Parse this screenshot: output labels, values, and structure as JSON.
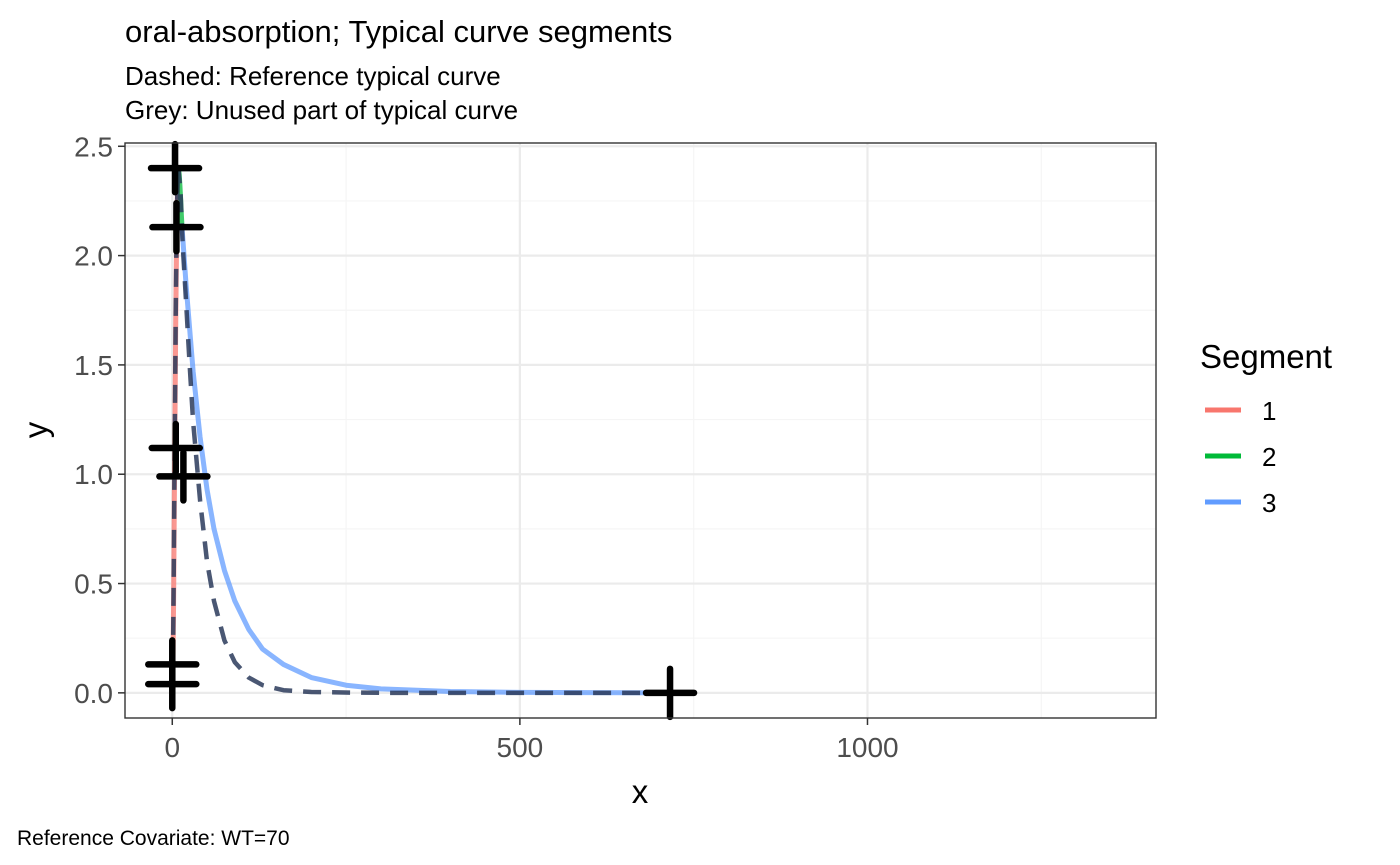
{
  "chart_data": {
    "type": "line",
    "title": "oral-absorption; Typical curve segments",
    "subtitle_lines": [
      "Dashed: Reference typical curve",
      "Grey: Unused part of typical curve"
    ],
    "xlabel": "x",
    "ylabel": "y",
    "xlim": [
      -68,
      1415
    ],
    "ylim": [
      -0.115,
      2.515
    ],
    "x_ticks": [
      0,
      500,
      1000
    ],
    "x_tick_labels": [
      "0",
      "500",
      "1000"
    ],
    "y_ticks": [
      0.0,
      0.5,
      1.0,
      1.5,
      2.0,
      2.5
    ],
    "y_tick_labels": [
      "0.0",
      "0.5",
      "1.0",
      "1.5",
      "2.0",
      "2.5"
    ],
    "grid": true,
    "legend": {
      "title": "Segment",
      "position": "right",
      "entries": [
        {
          "label": "1",
          "color": "#F8766D"
        },
        {
          "label": "2",
          "color": "#00BA38"
        },
        {
          "label": "3",
          "color": "#619CFF"
        }
      ]
    },
    "series": [
      {
        "name": "1",
        "color": "#F8766D",
        "style": "solid",
        "points": [
          [
            0,
            0.0
          ],
          [
            1,
            0.13
          ],
          [
            2,
            0.45
          ],
          [
            3,
            0.9
          ],
          [
            4,
            1.3
          ],
          [
            5,
            1.7
          ],
          [
            6,
            2.0
          ],
          [
            7,
            2.22
          ],
          [
            8,
            2.36
          ],
          [
            9,
            2.4
          ]
        ]
      },
      {
        "name": "2",
        "color": "#00BA38",
        "style": "solid",
        "points": [
          [
            9,
            2.4
          ],
          [
            10,
            2.37
          ],
          [
            11,
            2.32
          ],
          [
            12,
            2.26
          ],
          [
            13,
            2.19
          ],
          [
            14,
            2.13
          ]
        ]
      },
      {
        "name": "3",
        "color": "#619CFF",
        "style": "solid",
        "points": [
          [
            14,
            2.13
          ],
          [
            20,
            1.86
          ],
          [
            30,
            1.47
          ],
          [
            40,
            1.17
          ],
          [
            50,
            0.93
          ],
          [
            60,
            0.75
          ],
          [
            75,
            0.56
          ],
          [
            90,
            0.42
          ],
          [
            110,
            0.29
          ],
          [
            130,
            0.2
          ],
          [
            160,
            0.13
          ],
          [
            200,
            0.07
          ],
          [
            250,
            0.035
          ],
          [
            300,
            0.018
          ],
          [
            400,
            0.006
          ],
          [
            500,
            0.002
          ],
          [
            600,
            0.001
          ],
          [
            716,
            0.0
          ]
        ]
      },
      {
        "name": "",
        "color": "#2a3a5a",
        "style": "dashed",
        "points": [
          [
            0,
            0.0
          ],
          [
            1,
            0.15
          ],
          [
            2,
            0.5
          ],
          [
            3,
            0.95
          ],
          [
            4,
            1.35
          ],
          [
            5,
            1.75
          ],
          [
            6,
            2.05
          ],
          [
            7,
            2.25
          ],
          [
            8,
            2.37
          ],
          [
            9,
            2.4
          ],
          [
            12,
            2.28
          ],
          [
            15,
            2.05
          ],
          [
            20,
            1.78
          ],
          [
            25,
            1.5
          ],
          [
            30,
            1.24
          ],
          [
            40,
            0.88
          ],
          [
            50,
            0.6
          ],
          [
            60,
            0.42
          ],
          [
            75,
            0.24
          ],
          [
            90,
            0.14
          ],
          [
            110,
            0.07
          ],
          [
            130,
            0.035
          ],
          [
            160,
            0.012
          ],
          [
            200,
            0.004
          ],
          [
            260,
            0.001
          ],
          [
            320,
            0.0
          ],
          [
            716,
            0.0
          ]
        ]
      }
    ],
    "markers": [
      [
        0,
        0.04
      ],
      [
        0,
        0.13
      ],
      [
        5,
        1.12
      ],
      [
        16,
        0.99
      ],
      [
        6,
        2.13
      ],
      [
        4,
        2.4
      ],
      [
        716,
        0.0
      ]
    ]
  },
  "caption": "Reference Covariate: WT=70",
  "colors": {
    "panel_border": "#333333",
    "grid_major": "#ebebeb",
    "grid_minor": "#f5f5f5",
    "marker": "#000000"
  }
}
